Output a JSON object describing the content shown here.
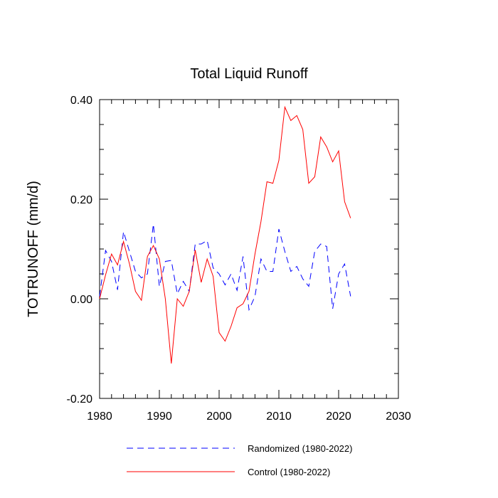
{
  "chart_data": {
    "type": "line",
    "title": "Total Liquid Runoff",
    "xlabel": "",
    "ylabel": "TOTRUNOFF  (mm/d)",
    "xlim": [
      1980,
      2030
    ],
    "ylim": [
      -0.2,
      0.4
    ],
    "xticks": [
      1980,
      1990,
      2000,
      2010,
      2020,
      2030
    ],
    "xtick_labels": [
      "1980",
      "1990",
      "2000",
      "2010",
      "2020",
      "2030"
    ],
    "yticks": [
      -0.2,
      0.0,
      0.2,
      0.4
    ],
    "ytick_labels": [
      "-0.20",
      "0.00",
      "0.20",
      "0.40"
    ],
    "grid": false,
    "legend_position": "bottom",
    "x": [
      1980,
      1981,
      1982,
      1983,
      1984,
      1985,
      1986,
      1987,
      1988,
      1989,
      1990,
      1991,
      1992,
      1993,
      1994,
      1995,
      1996,
      1997,
      1998,
      1999,
      2000,
      2001,
      2002,
      2003,
      2004,
      2005,
      2006,
      2007,
      2008,
      2009,
      2010,
      2011,
      2012,
      2013,
      2014,
      2015,
      2016,
      2017,
      2018,
      2019,
      2020,
      2021,
      2022
    ],
    "series": [
      {
        "name": "Randomized (1980-2022)",
        "color": "#0000ff",
        "dash": "dashed",
        "values": [
          0.005,
          0.097,
          0.075,
          0.018,
          0.135,
          0.095,
          0.055,
          0.042,
          0.05,
          0.15,
          0.025,
          0.075,
          0.077,
          0.01,
          0.035,
          0.015,
          0.11,
          0.11,
          0.117,
          0.062,
          0.05,
          0.028,
          0.05,
          0.017,
          0.085,
          -0.022,
          0.005,
          0.08,
          0.055,
          0.055,
          0.14,
          0.095,
          0.055,
          0.065,
          0.04,
          0.025,
          0.095,
          0.11,
          0.105,
          -0.02,
          0.05,
          0.07,
          0.005
        ]
      },
      {
        "name": "Control (1980-2022)",
        "color": "#ff0000",
        "dash": "solid",
        "values": [
          0.0,
          0.048,
          0.09,
          0.068,
          0.115,
          0.07,
          0.015,
          -0.003,
          0.085,
          0.107,
          0.08,
          0.0,
          -0.13,
          0.0,
          -0.015,
          0.015,
          0.098,
          0.033,
          0.08,
          0.045,
          -0.068,
          -0.085,
          -0.055,
          -0.018,
          -0.01,
          0.015,
          0.09,
          0.155,
          0.235,
          0.232,
          0.278,
          0.385,
          0.358,
          0.368,
          0.34,
          0.232,
          0.245,
          0.325,
          0.305,
          0.275,
          0.297,
          0.195,
          0.162
        ]
      }
    ]
  }
}
